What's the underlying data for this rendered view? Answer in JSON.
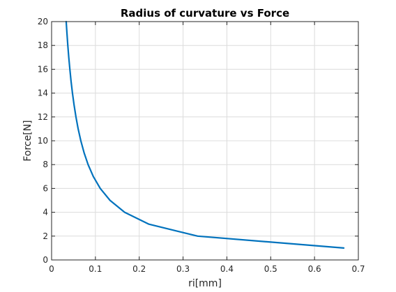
{
  "chart_data": {
    "type": "line",
    "title": "Radius of curvature vs Force",
    "xlabel": "ri[mm]",
    "ylabel": "Force[N]",
    "xlim": [
      0,
      0.7
    ],
    "ylim": [
      0,
      20
    ],
    "xticks": [
      0,
      0.1,
      0.2,
      0.3,
      0.4,
      0.5,
      0.6,
      0.7
    ],
    "yticks": [
      0,
      2,
      4,
      6,
      8,
      10,
      12,
      14,
      16,
      18,
      20
    ],
    "grid": true,
    "series": [
      {
        "color": "#0072bd",
        "x": [
          0.6667,
          0.3333,
          0.2222,
          0.1667,
          0.1333,
          0.1111,
          0.0952,
          0.0833,
          0.0741,
          0.0667,
          0.0606,
          0.0556,
          0.0513,
          0.0476,
          0.0444,
          0.0417,
          0.0392,
          0.037,
          0.0351,
          0.0333
        ],
        "y": [
          1,
          2,
          3,
          4,
          5,
          6,
          7,
          8,
          9,
          10,
          11,
          12,
          13,
          14,
          15,
          16,
          17,
          18,
          19,
          20
        ]
      }
    ]
  }
}
